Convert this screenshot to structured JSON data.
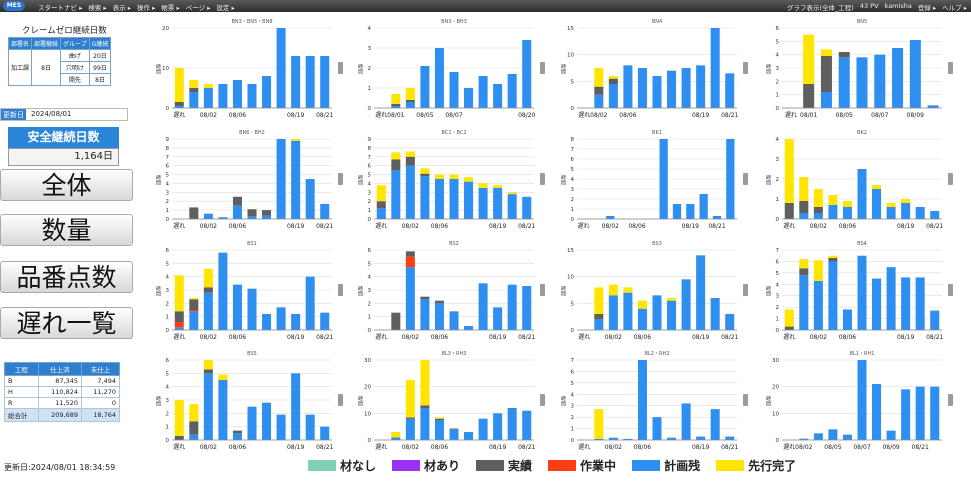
{
  "app": {
    "logo": "MES Cloud",
    "menu": [
      "スタートナビ ▸",
      "検索 ▸",
      "表示 ▸",
      "操作 ▸",
      "帳票 ▸",
      "ページ ▸",
      "設定 ▸"
    ],
    "topright": [
      "グラフ表示(全体_工程)",
      "43 PV",
      "kamisha",
      "登録 ▸",
      "ヘルプ ▸"
    ]
  },
  "kpi": {
    "title": "クレームゼロ継続日数",
    "headers": [
      "部署名",
      "部署継続",
      "グループ",
      "G継続"
    ],
    "dept": "加工課",
    "dept_days": "8日",
    "groups": [
      {
        "name": "曲げ",
        "days": "20日"
      },
      {
        "name": "穴明け",
        "days": "99日"
      },
      {
        "name": "開先",
        "days": "8日"
      }
    ]
  },
  "update": {
    "label": "更新日",
    "value": "2024/08/01"
  },
  "safety": {
    "title": "安全継続日数",
    "value": "1,164日"
  },
  "buttons": {
    "all": "全体",
    "qty": "数量",
    "part": "品番点数",
    "late": "遅れ一覧"
  },
  "summary": {
    "headers": [
      "工程",
      "仕上済",
      "未仕上"
    ],
    "rows": [
      {
        "name": "B",
        "done": "87,345",
        "left": "7,494"
      },
      {
        "name": "H",
        "done": "110,824",
        "left": "11,270"
      },
      {
        "name": "R",
        "done": "11,520",
        "left": "0"
      }
    ],
    "total": {
      "name": "総合計",
      "done": "209,689",
      "left": "18,764"
    }
  },
  "footer": {
    "updated": "更新日:2024/08/01 18:34:59"
  },
  "legend": [
    {
      "label": "材なし",
      "color": "#7fd1b9"
    },
    {
      "label": "材あり",
      "color": "#9a32f5"
    },
    {
      "label": "実績",
      "color": "#5f5f5f"
    },
    {
      "label": "作業中",
      "color": "#ff3d14"
    },
    {
      "label": "計画残",
      "color": "#2f8ff0"
    },
    {
      "label": "先行完了",
      "color": "#ffe500"
    }
  ],
  "colors": {
    "plan": "#2f8ff0",
    "actual": "#5f5f5f",
    "working": "#ff3d14",
    "early": "#ffe500",
    "grid": "#dddddd"
  },
  "chart_data": [
    {
      "type": "bar",
      "title": "BN3・BN5・BN8",
      "ylabel": "時間",
      "ylim": [
        0,
        20
      ],
      "yticks": [
        0,
        10,
        20
      ],
      "xticklabels": [
        "遅れ",
        "08/02",
        "08/06",
        "08/19",
        "08/21"
      ],
      "xtickpos": [
        0,
        2,
        4,
        8,
        10
      ],
      "plan": [
        0.5,
        4,
        5,
        6,
        7,
        6,
        8,
        24,
        13,
        13,
        13
      ],
      "actual": [
        1,
        1,
        0,
        0,
        0,
        0,
        0,
        0,
        0,
        0,
        0
      ],
      "working": [
        0,
        0,
        0,
        0,
        0,
        0,
        0,
        0,
        0,
        0,
        0
      ],
      "early": [
        8.5,
        2,
        1,
        0,
        0,
        0,
        0,
        1,
        0,
        0,
        0
      ]
    },
    {
      "type": "bar",
      "title": "BN3・BH3",
      "ylabel": "時間",
      "ylim": [
        0,
        4
      ],
      "yticks": [
        0,
        1,
        2,
        3,
        4
      ],
      "xticklabels": [
        "遅れ",
        "08/01",
        "08/05",
        "08/07",
        "08/20"
      ],
      "xtickpos": [
        0,
        1,
        3,
        5,
        10
      ],
      "plan": [
        0,
        0.1,
        0.3,
        2.1,
        3.0,
        1.8,
        1.0,
        1.6,
        1.2,
        1.7,
        3.4
      ],
      "actual": [
        0,
        0.1,
        0.1,
        0,
        0,
        0,
        0,
        0,
        0,
        0,
        0
      ],
      "working": [
        0,
        0,
        0,
        0,
        0,
        0,
        0,
        0,
        0,
        0,
        0
      ],
      "early": [
        0,
        0.5,
        0.6,
        0,
        0,
        0,
        0,
        0,
        0,
        0,
        0
      ]
    },
    {
      "type": "bar",
      "title": "BN4",
      "ylabel": "時間",
      "ylim": [
        0,
        15
      ],
      "yticks": [
        0,
        5,
        10,
        15
      ],
      "xticklabels": [
        "遅れ",
        "08/02",
        "08/06",
        "08/19",
        "08/21"
      ],
      "xtickpos": [
        0,
        1,
        3,
        8,
        10
      ],
      "plan": [
        0,
        2.5,
        4.5,
        8,
        7.5,
        6,
        7,
        7.5,
        8,
        15,
        6.5
      ],
      "actual": [
        0,
        1.5,
        1,
        0,
        0,
        0,
        0,
        0,
        0,
        0,
        0
      ],
      "working": [
        0,
        0,
        0,
        0,
        0,
        0,
        0,
        0,
        0,
        0,
        0
      ],
      "early": [
        0,
        3.5,
        0.5,
        0,
        0,
        0,
        0,
        0,
        0,
        0,
        0
      ]
    },
    {
      "type": "bar",
      "title": "BN5",
      "ylabel": "時間",
      "ylim": [
        0,
        6
      ],
      "yticks": [
        0,
        1,
        2,
        3,
        4,
        5,
        6
      ],
      "xticklabels": [
        "遅れ",
        "08/01",
        "08/05",
        "08/07",
        "08/09"
      ],
      "xtickpos": [
        0,
        1,
        3,
        5,
        7
      ],
      "plan": [
        0,
        0,
        1.2,
        3.8,
        3.8,
        4.0,
        4.5,
        5.1,
        0.2
      ],
      "actual": [
        0,
        1.8,
        2.7,
        0.4,
        0,
        0,
        0,
        0,
        0
      ],
      "working": [
        0,
        0,
        0,
        0,
        0,
        0,
        0,
        0,
        0
      ],
      "early": [
        0,
        3.7,
        0.5,
        0,
        0,
        0,
        0,
        0,
        0
      ]
    },
    {
      "type": "bar",
      "title": "BN6・BH2",
      "ylabel": "時間",
      "ylim": [
        0,
        9
      ],
      "yticks": [
        0,
        1,
        2,
        3,
        4,
        5,
        6,
        7,
        8,
        9
      ],
      "xticklabels": [
        "遅れ",
        "08/02",
        "08/06",
        "08/19",
        "08/21"
      ],
      "xtickpos": [
        0,
        2,
        4,
        8,
        10
      ],
      "plan": [
        0,
        0,
        0.6,
        0.2,
        1.5,
        0.3,
        0.4,
        9,
        8.8,
        4.5,
        1.7
      ],
      "actual": [
        0,
        1.3,
        0,
        0,
        1.0,
        0.8,
        0.6,
        0,
        0,
        0,
        0
      ],
      "working": [
        0,
        0,
        0,
        0,
        0,
        0,
        0,
        0,
        0,
        0,
        0
      ],
      "early": [
        0,
        0,
        0,
        0,
        0,
        0,
        0,
        0,
        0.3,
        0,
        0
      ]
    },
    {
      "type": "bar",
      "title": "BC1・BC2",
      "ylabel": "時間",
      "ylim": [
        0,
        9
      ],
      "yticks": [
        0,
        1,
        2,
        3,
        4,
        5,
        6,
        7,
        8,
        9
      ],
      "xticklabels": [
        "遅れ",
        "08/02",
        "08/06",
        "08/19",
        "08/21"
      ],
      "xtickpos": [
        0,
        2,
        4,
        8,
        10
      ],
      "plan": [
        1.2,
        5.5,
        6.0,
        4.8,
        4.5,
        4.5,
        4.2,
        3.5,
        3.5,
        2.8,
        2.5
      ],
      "actual": [
        0.8,
        1.2,
        1.0,
        0.3,
        0,
        0,
        0,
        0,
        0,
        0,
        0
      ],
      "working": [
        0,
        0,
        0,
        0,
        0,
        0,
        0,
        0,
        0,
        0,
        0
      ],
      "early": [
        1.8,
        0.8,
        0.6,
        0.6,
        0.5,
        0.5,
        0.5,
        0.5,
        0.3,
        0.2,
        0
      ]
    },
    {
      "type": "bar",
      "title": "BK1",
      "ylabel": "時間",
      "ylim": [
        0,
        8
      ],
      "yticks": [
        0,
        1,
        2,
        3,
        4,
        5,
        6,
        7,
        8
      ],
      "xticklabels": [
        "遅れ",
        "08/02",
        "08/06",
        "08/19",
        "08/21"
      ],
      "xtickpos": [
        0,
        2,
        4,
        8,
        10
      ],
      "plan": [
        0,
        0,
        0.3,
        0,
        0,
        0,
        8,
        1.5,
        1.5,
        2.5,
        0.3,
        8
      ],
      "actual": [
        0,
        0,
        0,
        0,
        0,
        0,
        0,
        0,
        0,
        0,
        0,
        0
      ],
      "working": [
        0,
        0,
        0,
        0,
        0,
        0,
        0,
        0,
        0,
        0,
        0,
        0
      ],
      "early": [
        0,
        0,
        0,
        0,
        0,
        0,
        0,
        0,
        0,
        0,
        0,
        0
      ]
    },
    {
      "type": "bar",
      "title": "BK2",
      "ylabel": "時間",
      "ylim": [
        0,
        4
      ],
      "yticks": [
        0,
        1,
        2,
        3,
        4
      ],
      "xticklabels": [
        "遅れ",
        "08/02",
        "08/06",
        "08/19",
        "08/21"
      ],
      "xtickpos": [
        0,
        2,
        4,
        8,
        10
      ],
      "plan": [
        0,
        0.3,
        0.3,
        0.7,
        0.6,
        2.5,
        1.5,
        0.6,
        0.8,
        0.6,
        0.4
      ],
      "actual": [
        0.8,
        0.6,
        0.3,
        0,
        0,
        0,
        0,
        0,
        0,
        0,
        0
      ],
      "working": [
        0,
        0,
        0,
        0,
        0,
        0,
        0,
        0,
        0,
        0,
        0
      ],
      "early": [
        3.5,
        1.2,
        0.9,
        0.5,
        0.3,
        0,
        0.2,
        0.2,
        0.2,
        0,
        0
      ]
    },
    {
      "type": "bar",
      "title": "BS1",
      "ylabel": "時間",
      "ylim": [
        0,
        6
      ],
      "yticks": [
        0,
        1,
        2,
        3,
        4,
        5,
        6
      ],
      "xticklabels": [
        "遅れ",
        "08/02",
        "08/06",
        "08/19",
        "08/21"
      ],
      "xtickpos": [
        0,
        2,
        4,
        8,
        10
      ],
      "plan": [
        0.2,
        1.4,
        2.8,
        5.8,
        3.4,
        3.1,
        1.2,
        1.7,
        1.2,
        4.0,
        1.3
      ],
      "actual": [
        0.8,
        0.8,
        0.4,
        0,
        0,
        0,
        0,
        0,
        0,
        0,
        0
      ],
      "working": [
        0.4,
        0.1,
        0,
        0,
        0,
        0,
        0,
        0,
        0,
        0,
        0
      ],
      "early": [
        2.7,
        0.1,
        1.4,
        0,
        0,
        0,
        0,
        0,
        0,
        0,
        0
      ]
    },
    {
      "type": "bar",
      "title": "BS2",
      "ylabel": "時間",
      "ylim": [
        0,
        6
      ],
      "yticks": [
        0,
        1,
        2,
        3,
        4,
        5,
        6
      ],
      "xticklabels": [
        "遅れ",
        "08/02",
        "08/06",
        "08/19",
        "08/21"
      ],
      "xtickpos": [
        0,
        2,
        4,
        8,
        10
      ],
      "plan": [
        0,
        0,
        4.7,
        2.3,
        2.0,
        1.4,
        0.3,
        3.5,
        1.7,
        3.4,
        3.3
      ],
      "actual": [
        0,
        1.3,
        0.4,
        0.2,
        0.2,
        0,
        0,
        0,
        0,
        0,
        0
      ],
      "working": [
        0,
        0,
        0.8,
        0,
        0,
        0,
        0,
        0,
        0,
        0,
        0
      ],
      "early": [
        0,
        0,
        0,
        0,
        0,
        0,
        0,
        0,
        0,
        0,
        0
      ]
    },
    {
      "type": "bar",
      "title": "BS3",
      "ylabel": "時間",
      "ylim": [
        0,
        15
      ],
      "yticks": [
        0,
        5,
        10,
        15
      ],
      "xticklabels": [
        "遅れ",
        "08/02",
        "08/06",
        "08/19",
        "08/21"
      ],
      "xtickpos": [
        0,
        2,
        4,
        8,
        10
      ],
      "plan": [
        0,
        2.0,
        6.5,
        7.0,
        4.0,
        6.5,
        5.5,
        9.5,
        14,
        6.0,
        3.0
      ],
      "actual": [
        0,
        1.0,
        0,
        0,
        0,
        0,
        0,
        0,
        0,
        0,
        0
      ],
      "working": [
        0,
        0,
        0,
        0,
        0,
        0,
        0,
        0,
        0,
        0,
        0
      ],
      "early": [
        0,
        5.0,
        2.0,
        1.0,
        1.5,
        0,
        0.5,
        0,
        0,
        0,
        0
      ]
    },
    {
      "type": "bar",
      "title": "BS4",
      "ylabel": "時間",
      "ylim": [
        0,
        7
      ],
      "yticks": [
        0,
        1,
        2,
        3,
        4,
        5,
        6,
        7
      ],
      "xticklabels": [
        "遅れ",
        "08/02",
        "08/06",
        "08/19",
        "08/21"
      ],
      "xtickpos": [
        0,
        2,
        4,
        8,
        10
      ],
      "plan": [
        0,
        4.8,
        4.3,
        6.0,
        1.8,
        6.5,
        4.5,
        5.5,
        4.6,
        4.6,
        1.7
      ],
      "actual": [
        0.3,
        0.6,
        0,
        0.3,
        0,
        0,
        0,
        0,
        0,
        0,
        0
      ],
      "working": [
        0,
        0,
        0,
        0,
        0,
        0,
        0,
        0,
        0,
        0,
        0
      ],
      "early": [
        1.5,
        0.8,
        1.8,
        0.2,
        0,
        0,
        0,
        0,
        0,
        0,
        0
      ]
    },
    {
      "type": "bar",
      "title": "BS5",
      "ylabel": "時間",
      "ylim": [
        0,
        6
      ],
      "yticks": [
        0,
        1,
        2,
        3,
        4,
        5,
        6
      ],
      "xticklabels": [
        "遅れ",
        "08/02",
        "08/06",
        "08/19",
        "08/21"
      ],
      "xtickpos": [
        0,
        2,
        4,
        8,
        10
      ],
      "plan": [
        0,
        0.4,
        5.0,
        4.5,
        0.5,
        2.5,
        2.8,
        1.9,
        5.0,
        1.9,
        1.0
      ],
      "actual": [
        0.3,
        1.0,
        0.3,
        0,
        0.2,
        0,
        0,
        0,
        0,
        0,
        0
      ],
      "working": [
        0,
        0,
        0,
        0,
        0,
        0,
        0,
        0,
        0,
        0,
        0
      ],
      "early": [
        2.7,
        1.3,
        1.5,
        0.4,
        0,
        0,
        0,
        0,
        0,
        0,
        0
      ]
    },
    {
      "type": "bar",
      "title": "BL3・RH3",
      "ylabel": "時間",
      "ylim": [
        0,
        30
      ],
      "yticks": [
        0,
        10,
        20,
        30
      ],
      "xticklabels": [
        "遅れ",
        "08/02",
        "08/06",
        "08/19",
        "08/21"
      ],
      "xtickpos": [
        0,
        2,
        4,
        8,
        10
      ],
      "plan": [
        0,
        1.0,
        8.0,
        12,
        7.5,
        4.0,
        3.0,
        8.0,
        10,
        12,
        11
      ],
      "actual": [
        0,
        0,
        0.5,
        1.0,
        0.5,
        0.3,
        0,
        0,
        0,
        0,
        0
      ],
      "working": [
        0,
        0,
        0,
        0,
        0,
        0,
        0,
        0,
        0,
        0,
        0
      ],
      "early": [
        0,
        2.0,
        14,
        17,
        0.5,
        0,
        0,
        0,
        0,
        0,
        0
      ]
    },
    {
      "type": "bar",
      "title": "BL2・RH2",
      "ylabel": "時間",
      "ylim": [
        0,
        7
      ],
      "yticks": [
        0,
        1,
        2,
        3,
        4,
        5,
        6,
        7
      ],
      "xticklabels": [
        "遅れ",
        "08/02",
        "08/06",
        "08/19",
        "08/21"
      ],
      "xtickpos": [
        0,
        2,
        4,
        8,
        10
      ],
      "plan": [
        0,
        0.1,
        0.2,
        0.1,
        7.0,
        2.0,
        0.2,
        3.2,
        0.3,
        2.7,
        0.3
      ],
      "actual": [
        0,
        0,
        0,
        0,
        0,
        0,
        0,
        0,
        0,
        0,
        0
      ],
      "working": [
        0,
        0,
        0,
        0,
        0,
        0,
        0,
        0,
        0,
        0,
        0
      ],
      "early": [
        0,
        2.6,
        0,
        0,
        0,
        0,
        0,
        0,
        0,
        0,
        0
      ]
    },
    {
      "type": "bar",
      "title": "BL1・RH1",
      "ylabel": "時間",
      "ylim": [
        0,
        30
      ],
      "yticks": [
        0,
        10,
        20,
        30
      ],
      "xticklabels": [
        "遅れ",
        "08/02",
        "08/05",
        "08/07",
        "08/09",
        "08/21"
      ],
      "xtickpos": [
        0,
        1,
        3,
        5,
        7,
        9
      ],
      "plan": [
        0,
        0.5,
        2.5,
        4.0,
        2.0,
        31,
        21,
        3.5,
        19,
        20,
        20
      ],
      "actual": [
        0,
        0,
        0,
        0,
        0,
        0,
        0,
        0,
        0,
        0,
        0
      ],
      "working": [
        0,
        0,
        0,
        0,
        0,
        0,
        0,
        0,
        0,
        0,
        0
      ],
      "early": [
        0,
        0,
        0,
        0,
        0,
        0,
        0,
        0,
        0,
        0,
        0
      ]
    }
  ]
}
